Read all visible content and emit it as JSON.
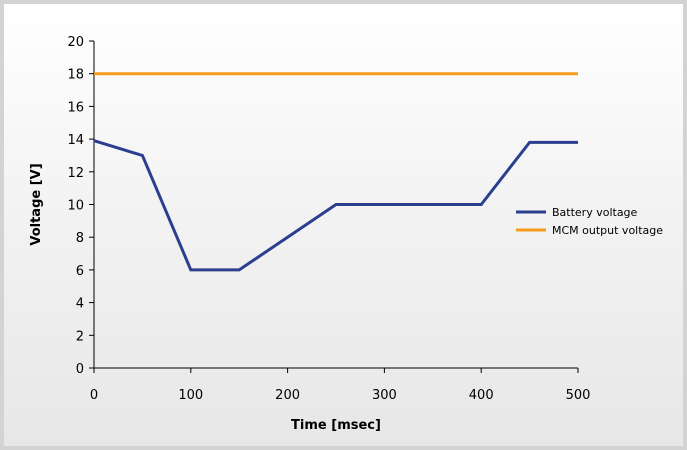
{
  "chart_data": {
    "type": "line",
    "xlabel": "Time [msec]",
    "ylabel": "Voltage [V]",
    "xlim": [
      0,
      500
    ],
    "ylim": [
      0,
      20
    ],
    "x_ticks": [
      "0",
      "100",
      "200",
      "300",
      "400",
      "500"
    ],
    "y_ticks": [
      "0",
      "2",
      "4",
      "6",
      "8",
      "10",
      "12",
      "14",
      "16",
      "18",
      "20"
    ],
    "grid": false,
    "legend_position": "right",
    "series": [
      {
        "name": "Battery voltage",
        "color": "#2c3e8f",
        "points": [
          [
            0,
            13.9
          ],
          [
            50,
            13
          ],
          [
            100,
            6
          ],
          [
            150,
            6
          ],
          [
            250,
            10
          ],
          [
            400,
            10
          ],
          [
            450,
            13.8
          ],
          [
            500,
            13.8
          ]
        ]
      },
      {
        "name": "MCM output voltage",
        "color": "#f39c1c",
        "points": [
          [
            0,
            18
          ],
          [
            500,
            18
          ]
        ]
      }
    ]
  }
}
